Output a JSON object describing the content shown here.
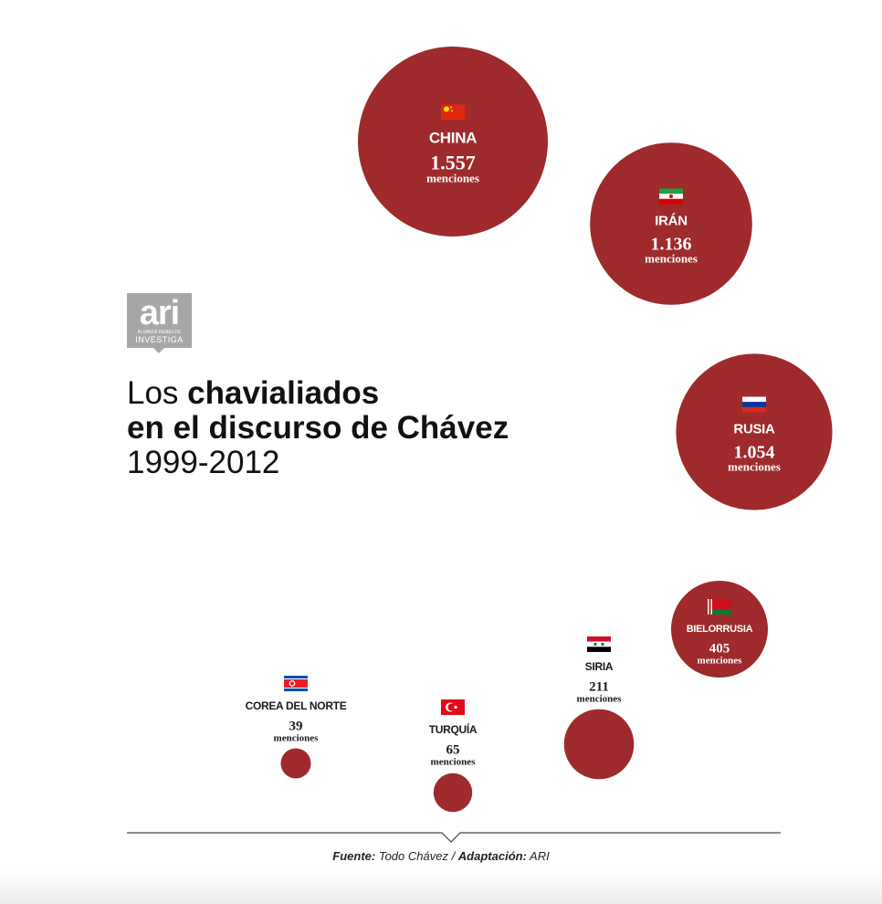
{
  "logo": {
    "word": "ari",
    "line1": "ALIANZA REBELDE",
    "line2": "INVESTIGA"
  },
  "title": {
    "line1_normal": "Los ",
    "line1_bold": "chavialiados",
    "line2_bold": "en el discurso de Chávez",
    "line3": "1999-2012"
  },
  "chart_data": {
    "type": "bubble",
    "unit_label": "menciones",
    "colors": {
      "bubble": "#9e2a2b",
      "text_on_bubble": "#ffffff",
      "text_outside": "#1a1a1a"
    },
    "points": [
      {
        "country": "CHINA",
        "value": 1557,
        "value_label": "1.557",
        "flag": "china-flag-icon"
      },
      {
        "country": "IRÁN",
        "value": 1136,
        "value_label": "1.136",
        "flag": "iran-flag-icon"
      },
      {
        "country": "RUSIA",
        "value": 1054,
        "value_label": "1.054",
        "flag": "russia-flag-icon"
      },
      {
        "country": "BIELORRUSIA",
        "value": 405,
        "value_label": "405",
        "flag": "belarus-flag-icon"
      },
      {
        "country": "SIRIA",
        "value": 211,
        "value_label": "211",
        "flag": "syria-flag-icon"
      },
      {
        "country": "TURQUÍA",
        "value": 65,
        "value_label": "65",
        "flag": "turkey-flag-icon"
      },
      {
        "country": "COREA DEL NORTE",
        "value": 39,
        "value_label": "39",
        "flag": "north-korea-flag-icon"
      }
    ]
  },
  "footer": {
    "source_label": "Fuente:",
    "source_value": " Todo Chávez / ",
    "adapt_label": "Adaptación:",
    "adapt_value": " ARI"
  }
}
